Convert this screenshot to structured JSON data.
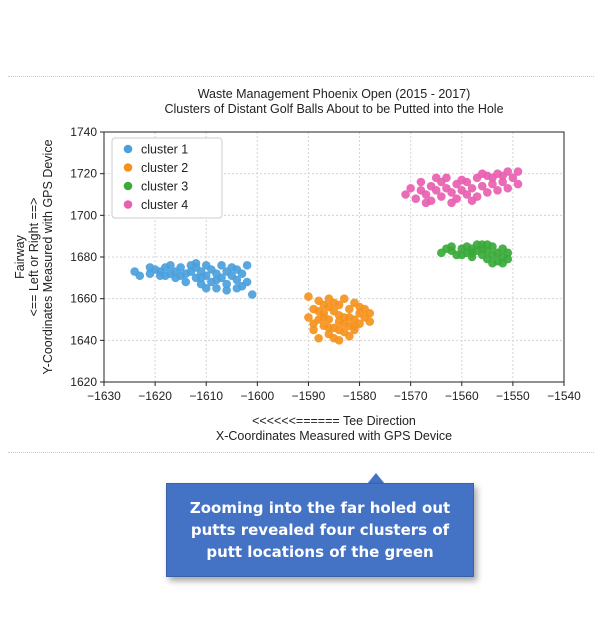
{
  "chart_data": {
    "type": "scatter",
    "title": "Waste Management Phoenix Open (2015 - 2017)",
    "subtitle": "Clusters of Distant Golf Balls About to be Putted into the Hole",
    "xlabel": [
      "<<<<<<====== Tee Direction",
      "X-Coordinates Measured with GPS Device"
    ],
    "ylabel": [
      "Fairway",
      "<== Left or Right ==>",
      "Y-Coordinates Measured with GPS Device"
    ],
    "xlim": [
      -1630,
      -1540
    ],
    "ylim": [
      1620,
      1740
    ],
    "xticks": [
      -1630,
      -1620,
      -1610,
      -1600,
      -1590,
      -1580,
      -1570,
      -1560,
      -1550,
      -1540
    ],
    "yticks": [
      1620,
      1640,
      1660,
      1680,
      1700,
      1720,
      1740
    ],
    "grid": true,
    "legend_position": "top-left",
    "series": [
      {
        "name": "cluster 1",
        "color": "#4a9fdc",
        "points": [
          [
            -1624,
            1673
          ],
          [
            -1623,
            1671
          ],
          [
            -1621,
            1672
          ],
          [
            -1620,
            1674
          ],
          [
            -1619,
            1673
          ],
          [
            -1618,
            1675
          ],
          [
            -1618,
            1671
          ],
          [
            -1617,
            1676
          ],
          [
            -1616,
            1673
          ],
          [
            -1616,
            1670
          ],
          [
            -1615,
            1675
          ],
          [
            -1614,
            1672
          ],
          [
            -1614,
            1668
          ],
          [
            -1613,
            1676
          ],
          [
            -1613,
            1673
          ],
          [
            -1612,
            1670
          ],
          [
            -1612,
            1675
          ],
          [
            -1611,
            1673
          ],
          [
            -1611,
            1667
          ],
          [
            -1610,
            1676
          ],
          [
            -1610,
            1671
          ],
          [
            -1609,
            1674
          ],
          [
            -1609,
            1668
          ],
          [
            -1608,
            1672
          ],
          [
            -1608,
            1665
          ],
          [
            -1607,
            1676
          ],
          [
            -1607,
            1670
          ],
          [
            -1606,
            1673
          ],
          [
            -1606,
            1667
          ],
          [
            -1605,
            1675
          ],
          [
            -1605,
            1671
          ],
          [
            -1604,
            1669
          ],
          [
            -1604,
            1674
          ],
          [
            -1603,
            1672
          ],
          [
            -1603,
            1666
          ],
          [
            -1602,
            1676
          ],
          [
            -1602,
            1668
          ],
          [
            -1601,
            1662
          ],
          [
            -1615,
            1671
          ],
          [
            -1610,
            1665
          ],
          [
            -1606,
            1664
          ],
          [
            -1617,
            1672
          ],
          [
            -1612,
            1677
          ],
          [
            -1608,
            1669
          ],
          [
            -1604,
            1665
          ],
          [
            -1621,
            1675
          ],
          [
            -1619,
            1671
          ],
          [
            -1611,
            1670
          ]
        ]
      },
      {
        "name": "cluster 2",
        "color": "#f5921e",
        "points": [
          [
            -1590,
            1661
          ],
          [
            -1590,
            1651
          ],
          [
            -1589,
            1645
          ],
          [
            -1589,
            1655
          ],
          [
            -1588,
            1650
          ],
          [
            -1588,
            1641
          ],
          [
            -1588,
            1659
          ],
          [
            -1587,
            1647
          ],
          [
            -1587,
            1653
          ],
          [
            -1587,
            1657
          ],
          [
            -1586,
            1643
          ],
          [
            -1586,
            1650
          ],
          [
            -1586,
            1660
          ],
          [
            -1585,
            1646
          ],
          [
            -1585,
            1654
          ],
          [
            -1585,
            1641
          ],
          [
            -1584,
            1649
          ],
          [
            -1584,
            1657
          ],
          [
            -1584,
            1652
          ],
          [
            -1583,
            1644
          ],
          [
            -1583,
            1660
          ],
          [
            -1583,
            1651
          ],
          [
            -1582,
            1647
          ],
          [
            -1582,
            1655
          ],
          [
            -1582,
            1642
          ],
          [
            -1581,
            1650
          ],
          [
            -1581,
            1658
          ],
          [
            -1581,
            1645
          ],
          [
            -1580,
            1653
          ],
          [
            -1580,
            1648
          ],
          [
            -1579,
            1651
          ],
          [
            -1579,
            1655
          ],
          [
            -1578,
            1649
          ],
          [
            -1578,
            1653
          ],
          [
            -1589,
            1648
          ],
          [
            -1586,
            1656
          ],
          [
            -1584,
            1645
          ],
          [
            -1582,
            1651
          ],
          [
            -1580,
            1656
          ],
          [
            -1587,
            1651
          ],
          [
            -1585,
            1658
          ],
          [
            -1583,
            1648
          ],
          [
            -1588,
            1654
          ],
          [
            -1581,
            1647
          ],
          [
            -1586,
            1646
          ],
          [
            -1584,
            1640
          ]
        ]
      },
      {
        "name": "cluster 3",
        "color": "#3aaa3a",
        "points": [
          [
            -1564,
            1682
          ],
          [
            -1563,
            1684
          ],
          [
            -1562,
            1683
          ],
          [
            -1561,
            1681
          ],
          [
            -1560,
            1684
          ],
          [
            -1559,
            1685
          ],
          [
            -1559,
            1682
          ],
          [
            -1558,
            1680
          ],
          [
            -1558,
            1684
          ],
          [
            -1557,
            1683
          ],
          [
            -1557,
            1686
          ],
          [
            -1556,
            1681
          ],
          [
            -1556,
            1684
          ],
          [
            -1555,
            1679
          ],
          [
            -1555,
            1683
          ],
          [
            -1554,
            1685
          ],
          [
            -1554,
            1681
          ],
          [
            -1553,
            1678
          ],
          [
            -1553,
            1682
          ],
          [
            -1552,
            1680
          ],
          [
            -1552,
            1684
          ],
          [
            -1551,
            1679
          ],
          [
            -1551,
            1682
          ],
          [
            -1560,
            1681
          ],
          [
            -1556,
            1686
          ],
          [
            -1554,
            1677
          ],
          [
            -1558,
            1682
          ],
          [
            -1552,
            1677
          ],
          [
            -1562,
            1685
          ],
          [
            -1555,
            1686
          ]
        ]
      },
      {
        "name": "cluster 4",
        "color": "#e860b0",
        "points": [
          [
            -1571,
            1710
          ],
          [
            -1570,
            1713
          ],
          [
            -1569,
            1708
          ],
          [
            -1568,
            1712
          ],
          [
            -1568,
            1716
          ],
          [
            -1567,
            1710
          ],
          [
            -1566,
            1714
          ],
          [
            -1566,
            1707
          ],
          [
            -1565,
            1712
          ],
          [
            -1564,
            1716
          ],
          [
            -1564,
            1709
          ],
          [
            -1563,
            1713
          ],
          [
            -1563,
            1718
          ],
          [
            -1562,
            1711
          ],
          [
            -1561,
            1715
          ],
          [
            -1561,
            1708
          ],
          [
            -1560,
            1712
          ],
          [
            -1559,
            1716
          ],
          [
            -1559,
            1710
          ],
          [
            -1558,
            1713
          ],
          [
            -1557,
            1718
          ],
          [
            -1557,
            1709
          ],
          [
            -1556,
            1714
          ],
          [
            -1555,
            1711
          ],
          [
            -1555,
            1719
          ],
          [
            -1554,
            1715
          ],
          [
            -1553,
            1712
          ],
          [
            -1553,
            1720
          ],
          [
            -1552,
            1716
          ],
          [
            -1551,
            1713
          ],
          [
            -1551,
            1721
          ],
          [
            -1550,
            1718
          ],
          [
            -1549,
            1721
          ],
          [
            -1549,
            1715
          ],
          [
            -1556,
            1720
          ],
          [
            -1560,
            1717
          ],
          [
            -1565,
            1718
          ],
          [
            -1562,
            1706
          ],
          [
            -1558,
            1707
          ],
          [
            -1552,
            1719
          ],
          [
            -1554,
            1718
          ],
          [
            -1567,
            1706
          ]
        ]
      }
    ]
  },
  "callout": {
    "text": "Zooming into the far holed out putts revealed four clusters of putt locations of the green",
    "color": "#4472c4"
  }
}
